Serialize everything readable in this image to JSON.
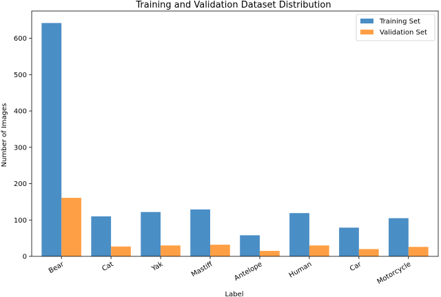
{
  "chart_data": {
    "type": "bar",
    "title": "Training and Validation Dataset Distribution",
    "xlabel": "Label",
    "ylabel": "Number of Images",
    "categories": [
      "Bear",
      "Cat",
      "Yak",
      "Mastiff",
      "Antelope",
      "Human",
      "Car",
      "Motorcycle"
    ],
    "series": [
      {
        "name": "Training Set",
        "color": "#4a8ec6",
        "values": [
          642,
          110,
          122,
          129,
          58,
          119,
          79,
          105
        ]
      },
      {
        "name": "Validation Set",
        "color": "#ff9f45",
        "values": [
          161,
          27,
          30,
          32,
          15,
          30,
          20,
          26
        ]
      }
    ],
    "ylim": [
      0,
      675
    ],
    "yticks": [
      0,
      100,
      200,
      300,
      400,
      500,
      600
    ],
    "legend_position": "top-right",
    "grid": false
  }
}
